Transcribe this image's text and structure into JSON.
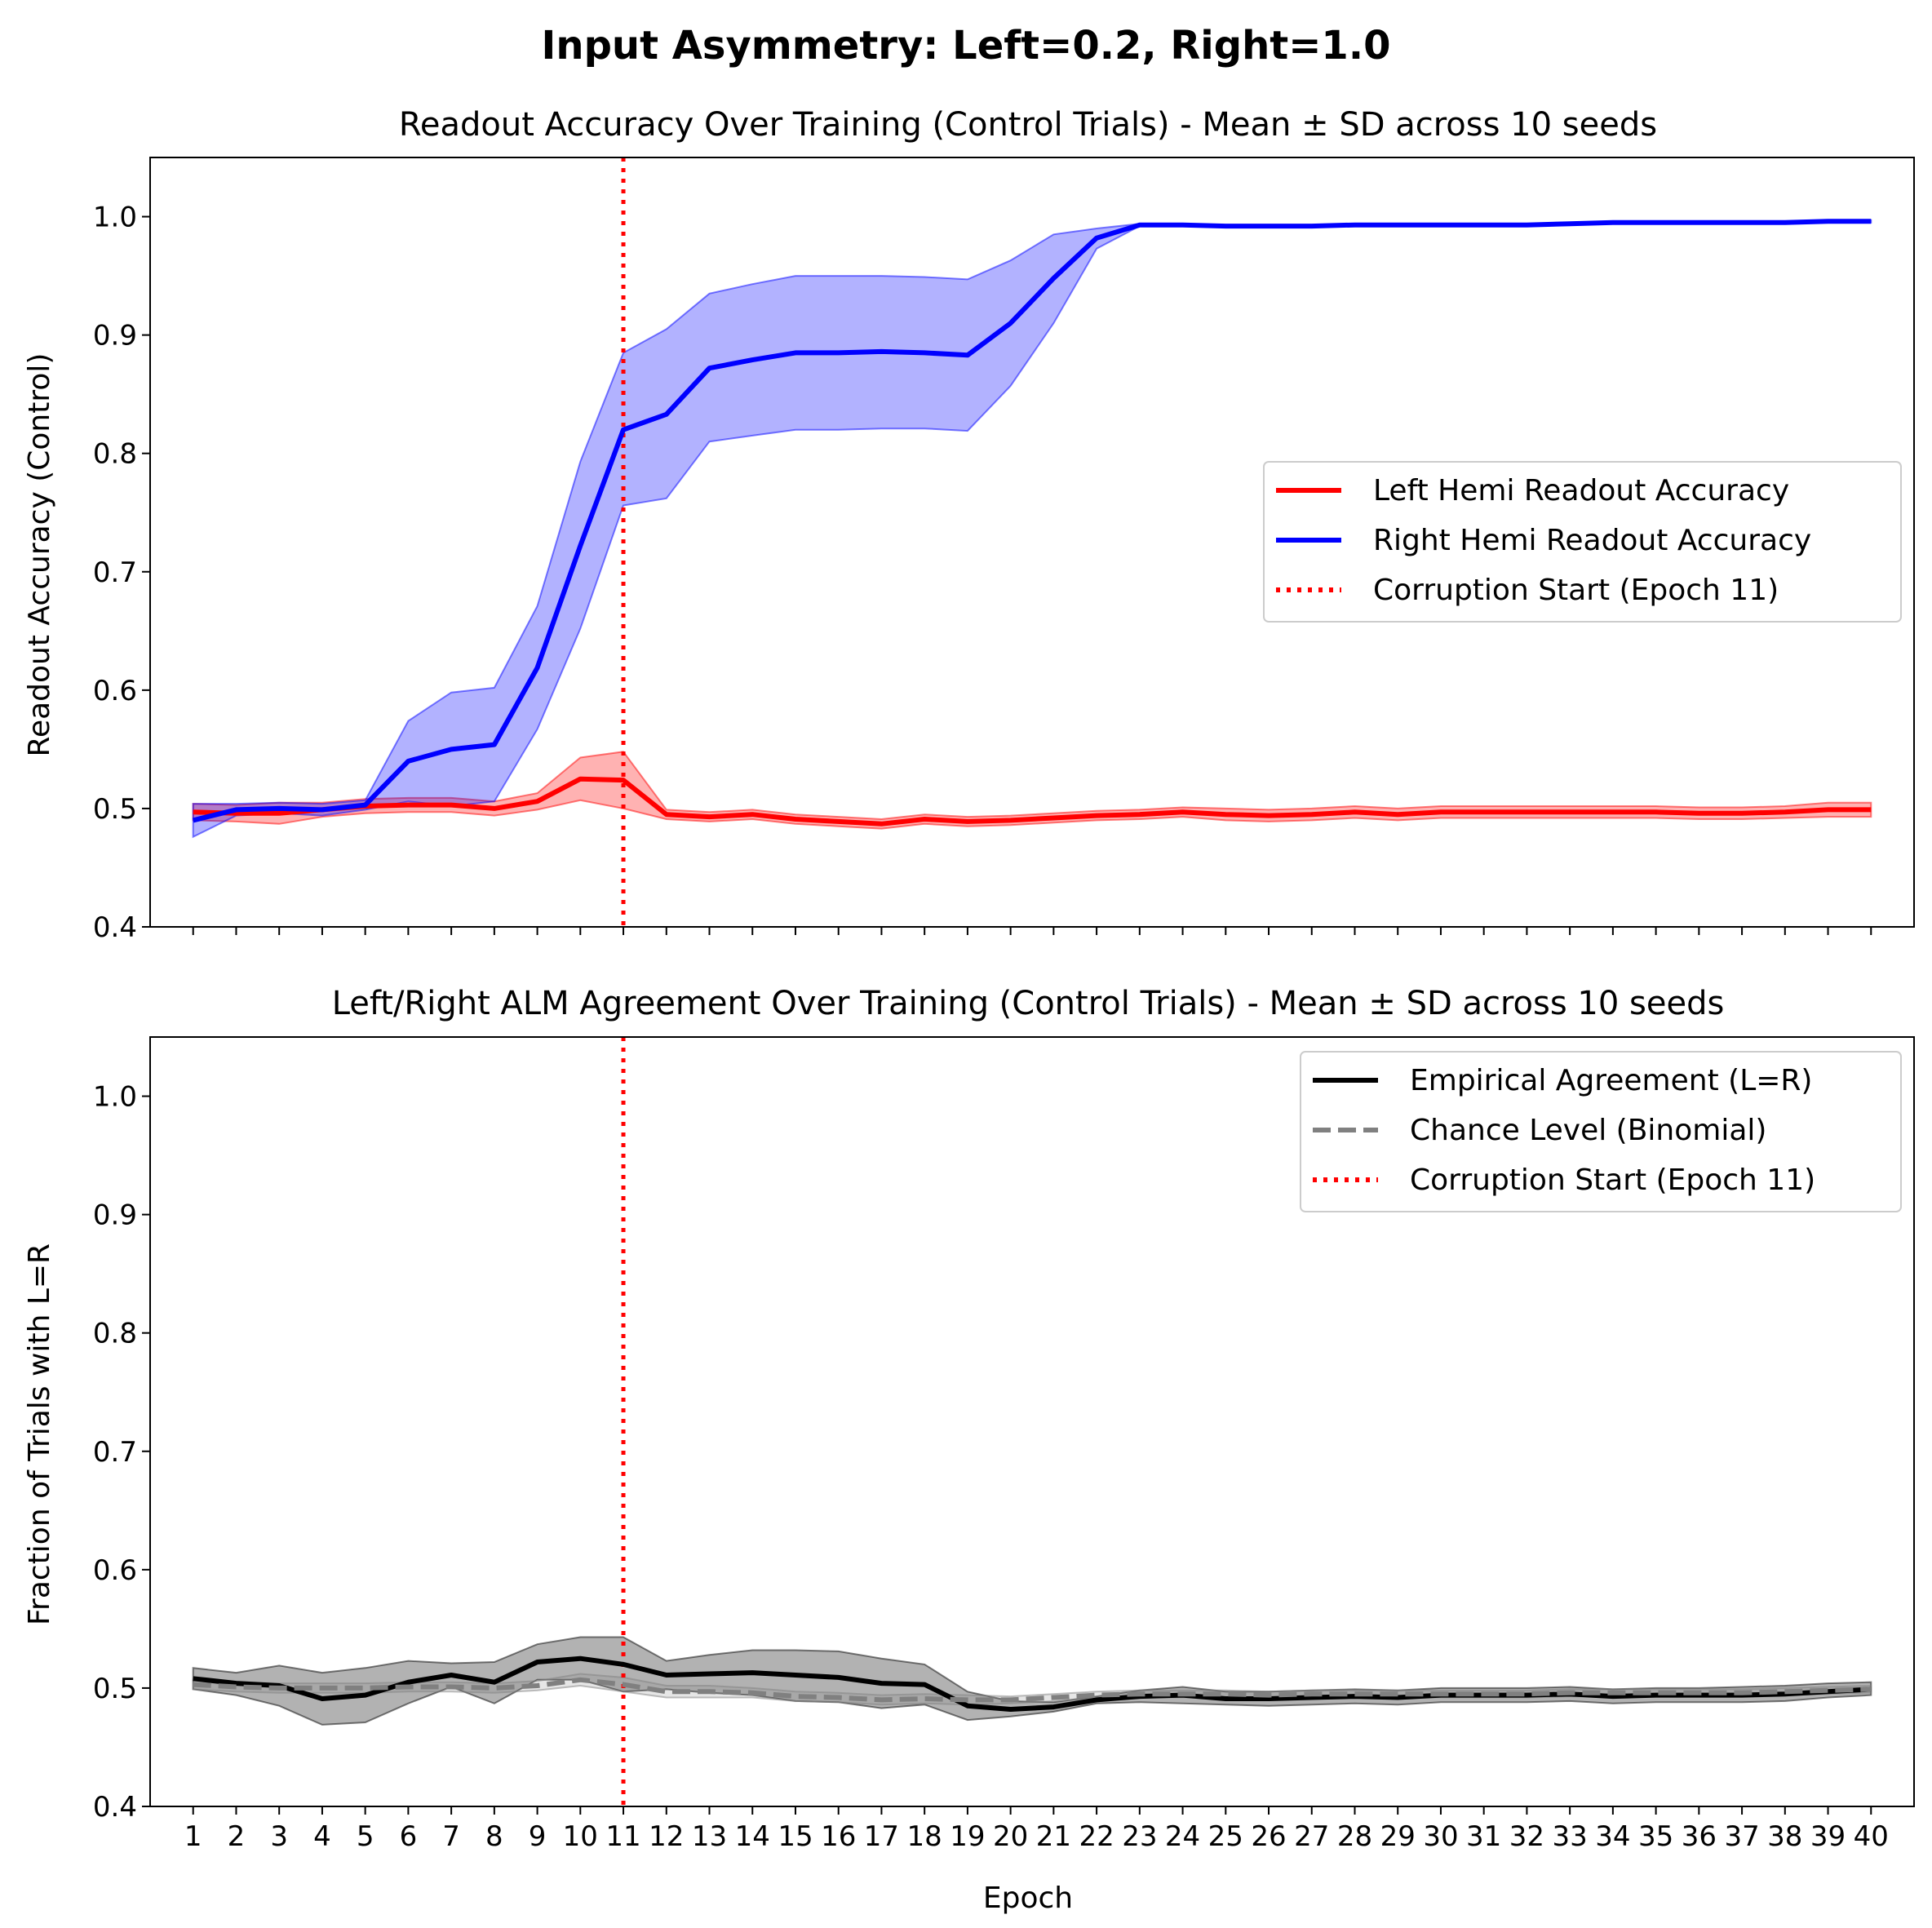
{
  "figure": {
    "suptitle": "Input Asymmetry: Left=0.2, Right=1.0"
  },
  "chart_data": [
    {
      "type": "line",
      "title": "Readout Accuracy Over Training (Control Trials) - Mean ± SD across 10 seeds",
      "xlabel": "",
      "ylabel": "Readout Accuracy (Control)",
      "ylim": [
        0.4,
        1.05
      ],
      "xlim": [
        0,
        41
      ],
      "yticks": [
        0.4,
        0.5,
        0.6,
        0.7,
        0.8,
        0.9,
        1.0
      ],
      "ytick_labels": [
        "0.4",
        "0.5",
        "0.6",
        "0.7",
        "0.8",
        "0.9",
        "1.0"
      ],
      "x": [
        1,
        2,
        3,
        4,
        5,
        6,
        7,
        8,
        9,
        10,
        11,
        12,
        13,
        14,
        15,
        16,
        17,
        18,
        19,
        20,
        21,
        22,
        23,
        24,
        25,
        26,
        27,
        28,
        29,
        30,
        31,
        32,
        33,
        34,
        35,
        36,
        37,
        38,
        39,
        40
      ],
      "show_tick_labels_x": false,
      "legend_position": "center-right",
      "series": [
        {
          "name": "Left Hemi Readout Accuracy",
          "color": "#ff0000",
          "style": "solid",
          "values": [
            0.497,
            0.496,
            0.496,
            0.499,
            0.502,
            0.503,
            0.503,
            0.5,
            0.506,
            0.525,
            0.524,
            0.495,
            0.493,
            0.495,
            0.491,
            0.489,
            0.487,
            0.491,
            0.489,
            0.49,
            0.492,
            0.494,
            0.495,
            0.497,
            0.495,
            0.494,
            0.495,
            0.497,
            0.495,
            0.497,
            0.497,
            0.497,
            0.497,
            0.497,
            0.497,
            0.496,
            0.496,
            0.497,
            0.499,
            0.499
          ],
          "band_lower": [
            0.49,
            0.489,
            0.487,
            0.493,
            0.496,
            0.497,
            0.497,
            0.494,
            0.499,
            0.507,
            0.5,
            0.491,
            0.489,
            0.491,
            0.487,
            0.485,
            0.483,
            0.487,
            0.485,
            0.486,
            0.488,
            0.49,
            0.491,
            0.493,
            0.49,
            0.489,
            0.49,
            0.492,
            0.49,
            0.492,
            0.492,
            0.492,
            0.492,
            0.492,
            0.492,
            0.491,
            0.491,
            0.492,
            0.493,
            0.493
          ],
          "band_upper": [
            0.504,
            0.503,
            0.505,
            0.505,
            0.508,
            0.509,
            0.509,
            0.506,
            0.513,
            0.543,
            0.548,
            0.499,
            0.497,
            0.499,
            0.495,
            0.493,
            0.491,
            0.495,
            0.493,
            0.494,
            0.496,
            0.498,
            0.499,
            0.501,
            0.5,
            0.499,
            0.5,
            0.502,
            0.5,
            0.502,
            0.502,
            0.502,
            0.502,
            0.502,
            0.502,
            0.501,
            0.501,
            0.502,
            0.505,
            0.505
          ]
        },
        {
          "name": "Right Hemi Readout Accuracy",
          "color": "#0000ff",
          "style": "solid",
          "values": [
            0.49,
            0.499,
            0.5,
            0.499,
            0.503,
            0.54,
            0.55,
            0.554,
            0.619,
            0.722,
            0.82,
            0.833,
            0.872,
            0.879,
            0.885,
            0.885,
            0.886,
            0.885,
            0.883,
            0.91,
            0.948,
            0.982,
            0.993,
            0.993,
            0.992,
            0.992,
            0.992,
            0.993,
            0.993,
            0.993,
            0.993,
            0.993,
            0.994,
            0.995,
            0.995,
            0.995,
            0.995,
            0.995,
            0.996,
            0.996
          ],
          "band_lower": [
            0.476,
            0.494,
            0.496,
            0.494,
            0.499,
            0.506,
            0.502,
            0.506,
            0.567,
            0.652,
            0.756,
            0.762,
            0.81,
            0.815,
            0.82,
            0.82,
            0.821,
            0.821,
            0.819,
            0.857,
            0.91,
            0.973,
            0.992,
            0.992,
            0.991,
            0.991,
            0.991,
            0.992,
            0.992,
            0.992,
            0.992,
            0.992,
            0.993,
            0.994,
            0.994,
            0.994,
            0.994,
            0.994,
            0.995,
            0.995
          ],
          "band_upper": [
            0.504,
            0.504,
            0.505,
            0.504,
            0.507,
            0.574,
            0.598,
            0.602,
            0.671,
            0.793,
            0.885,
            0.905,
            0.935,
            0.943,
            0.95,
            0.95,
            0.95,
            0.949,
            0.947,
            0.963,
            0.985,
            0.99,
            0.994,
            0.994,
            0.993,
            0.993,
            0.993,
            0.994,
            0.994,
            0.994,
            0.994,
            0.994,
            0.995,
            0.996,
            0.996,
            0.996,
            0.996,
            0.996,
            0.997,
            0.997
          ]
        },
        {
          "name": "Corruption Start (Epoch 11)",
          "color": "#ff0000",
          "style": "dotted",
          "vline_x": 11
        }
      ]
    },
    {
      "type": "line",
      "title": "Left/Right ALM Agreement Over Training (Control Trials) - Mean ± SD across 10 seeds",
      "xlabel": "Epoch",
      "ylabel": "Fraction of Trials with L=R",
      "ylim": [
        0.4,
        1.05
      ],
      "xlim": [
        0,
        41
      ],
      "yticks": [
        0.4,
        0.5,
        0.6,
        0.7,
        0.8,
        0.9,
        1.0
      ],
      "ytick_labels": [
        "0.4",
        "0.5",
        "0.6",
        "0.7",
        "0.8",
        "0.9",
        "1.0"
      ],
      "x": [
        1,
        2,
        3,
        4,
        5,
        6,
        7,
        8,
        9,
        10,
        11,
        12,
        13,
        14,
        15,
        16,
        17,
        18,
        19,
        20,
        21,
        22,
        23,
        24,
        25,
        26,
        27,
        28,
        29,
        30,
        31,
        32,
        33,
        34,
        35,
        36,
        37,
        38,
        39,
        40
      ],
      "xtick_labels": [
        "1",
        "2",
        "3",
        "4",
        "5",
        "6",
        "7",
        "8",
        "9",
        "10",
        "11",
        "12",
        "13",
        "14",
        "15",
        "16",
        "17",
        "18",
        "19",
        "20",
        "21",
        "22",
        "23",
        "24",
        "25",
        "26",
        "27",
        "28",
        "29",
        "30",
        "31",
        "32",
        "33",
        "34",
        "35",
        "36",
        "37",
        "38",
        "39",
        "40"
      ],
      "show_tick_labels_x": true,
      "legend_position": "top-right",
      "series": [
        {
          "name": "Empirical Agreement (L=R)",
          "color": "#000000",
          "style": "solid",
          "values": [
            0.508,
            0.504,
            0.502,
            0.491,
            0.494,
            0.505,
            0.511,
            0.505,
            0.522,
            0.525,
            0.52,
            0.511,
            0.512,
            0.513,
            0.511,
            0.509,
            0.504,
            0.503,
            0.485,
            0.482,
            0.484,
            0.49,
            0.493,
            0.494,
            0.491,
            0.491,
            0.492,
            0.493,
            0.492,
            0.494,
            0.494,
            0.494,
            0.495,
            0.493,
            0.494,
            0.494,
            0.494,
            0.495,
            0.497,
            0.499
          ],
          "band_lower": [
            0.499,
            0.494,
            0.485,
            0.469,
            0.471,
            0.487,
            0.501,
            0.487,
            0.507,
            0.507,
            0.497,
            0.499,
            0.496,
            0.494,
            0.489,
            0.488,
            0.483,
            0.486,
            0.473,
            0.476,
            0.48,
            0.487,
            0.488,
            0.487,
            0.486,
            0.485,
            0.486,
            0.487,
            0.486,
            0.488,
            0.488,
            0.488,
            0.489,
            0.487,
            0.488,
            0.488,
            0.488,
            0.489,
            0.492,
            0.494
          ],
          "band_upper": [
            0.517,
            0.513,
            0.519,
            0.513,
            0.517,
            0.523,
            0.521,
            0.522,
            0.537,
            0.543,
            0.543,
            0.523,
            0.528,
            0.532,
            0.532,
            0.531,
            0.525,
            0.52,
            0.497,
            0.489,
            0.488,
            0.493,
            0.498,
            0.501,
            0.497,
            0.497,
            0.498,
            0.499,
            0.498,
            0.5,
            0.5,
            0.5,
            0.501,
            0.499,
            0.5,
            0.5,
            0.501,
            0.502,
            0.504,
            0.505
          ]
        },
        {
          "name": "Chance Level (Binomial)",
          "color": "#808080",
          "style": "dashed",
          "values": [
            0.503,
            0.501,
            0.5,
            0.5,
            0.5,
            0.501,
            0.501,
            0.5,
            0.502,
            0.507,
            0.503,
            0.497,
            0.497,
            0.496,
            0.493,
            0.492,
            0.49,
            0.491,
            0.49,
            0.49,
            0.492,
            0.494,
            0.495,
            0.495,
            0.495,
            0.494,
            0.495,
            0.495,
            0.495,
            0.495,
            0.495,
            0.495,
            0.496,
            0.496,
            0.496,
            0.496,
            0.496,
            0.497,
            0.498,
            0.499
          ],
          "band_lower": [
            0.499,
            0.497,
            0.496,
            0.496,
            0.496,
            0.497,
            0.497,
            0.496,
            0.498,
            0.502,
            0.497,
            0.492,
            0.492,
            0.492,
            0.489,
            0.488,
            0.486,
            0.487,
            0.486,
            0.487,
            0.489,
            0.491,
            0.492,
            0.492,
            0.492,
            0.491,
            0.492,
            0.492,
            0.492,
            0.492,
            0.492,
            0.492,
            0.493,
            0.493,
            0.493,
            0.493,
            0.493,
            0.494,
            0.495,
            0.496
          ],
          "band_upper": [
            0.507,
            0.505,
            0.504,
            0.504,
            0.504,
            0.505,
            0.505,
            0.504,
            0.506,
            0.512,
            0.509,
            0.502,
            0.502,
            0.5,
            0.497,
            0.496,
            0.494,
            0.495,
            0.494,
            0.493,
            0.495,
            0.497,
            0.498,
            0.498,
            0.498,
            0.497,
            0.498,
            0.498,
            0.498,
            0.498,
            0.498,
            0.498,
            0.499,
            0.499,
            0.499,
            0.499,
            0.499,
            0.5,
            0.501,
            0.502
          ]
        },
        {
          "name": "Corruption Start (Epoch 11)",
          "color": "#ff0000",
          "style": "dotted",
          "vline_x": 11
        }
      ]
    }
  ]
}
